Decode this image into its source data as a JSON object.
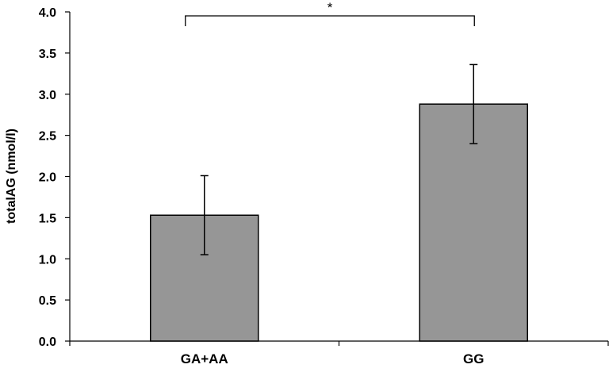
{
  "chart_data": {
    "type": "bar",
    "categories": [
      "GA+AA",
      "GG"
    ],
    "values": [
      1.53,
      2.88
    ],
    "error": [
      0.48,
      0.48
    ],
    "title": "",
    "xlabel": "",
    "ylabel": "totalAG (nmol/l)",
    "ylim": [
      0,
      4.0
    ],
    "yticks": [
      "0.0",
      "0.5",
      "1.0",
      "1.5",
      "2.0",
      "2.5",
      "3.0",
      "3.5",
      "4.0"
    ],
    "grid": false,
    "bar_color": "#969696",
    "significance": {
      "between": [
        "GA+AA",
        "GG"
      ],
      "label": "*"
    }
  }
}
